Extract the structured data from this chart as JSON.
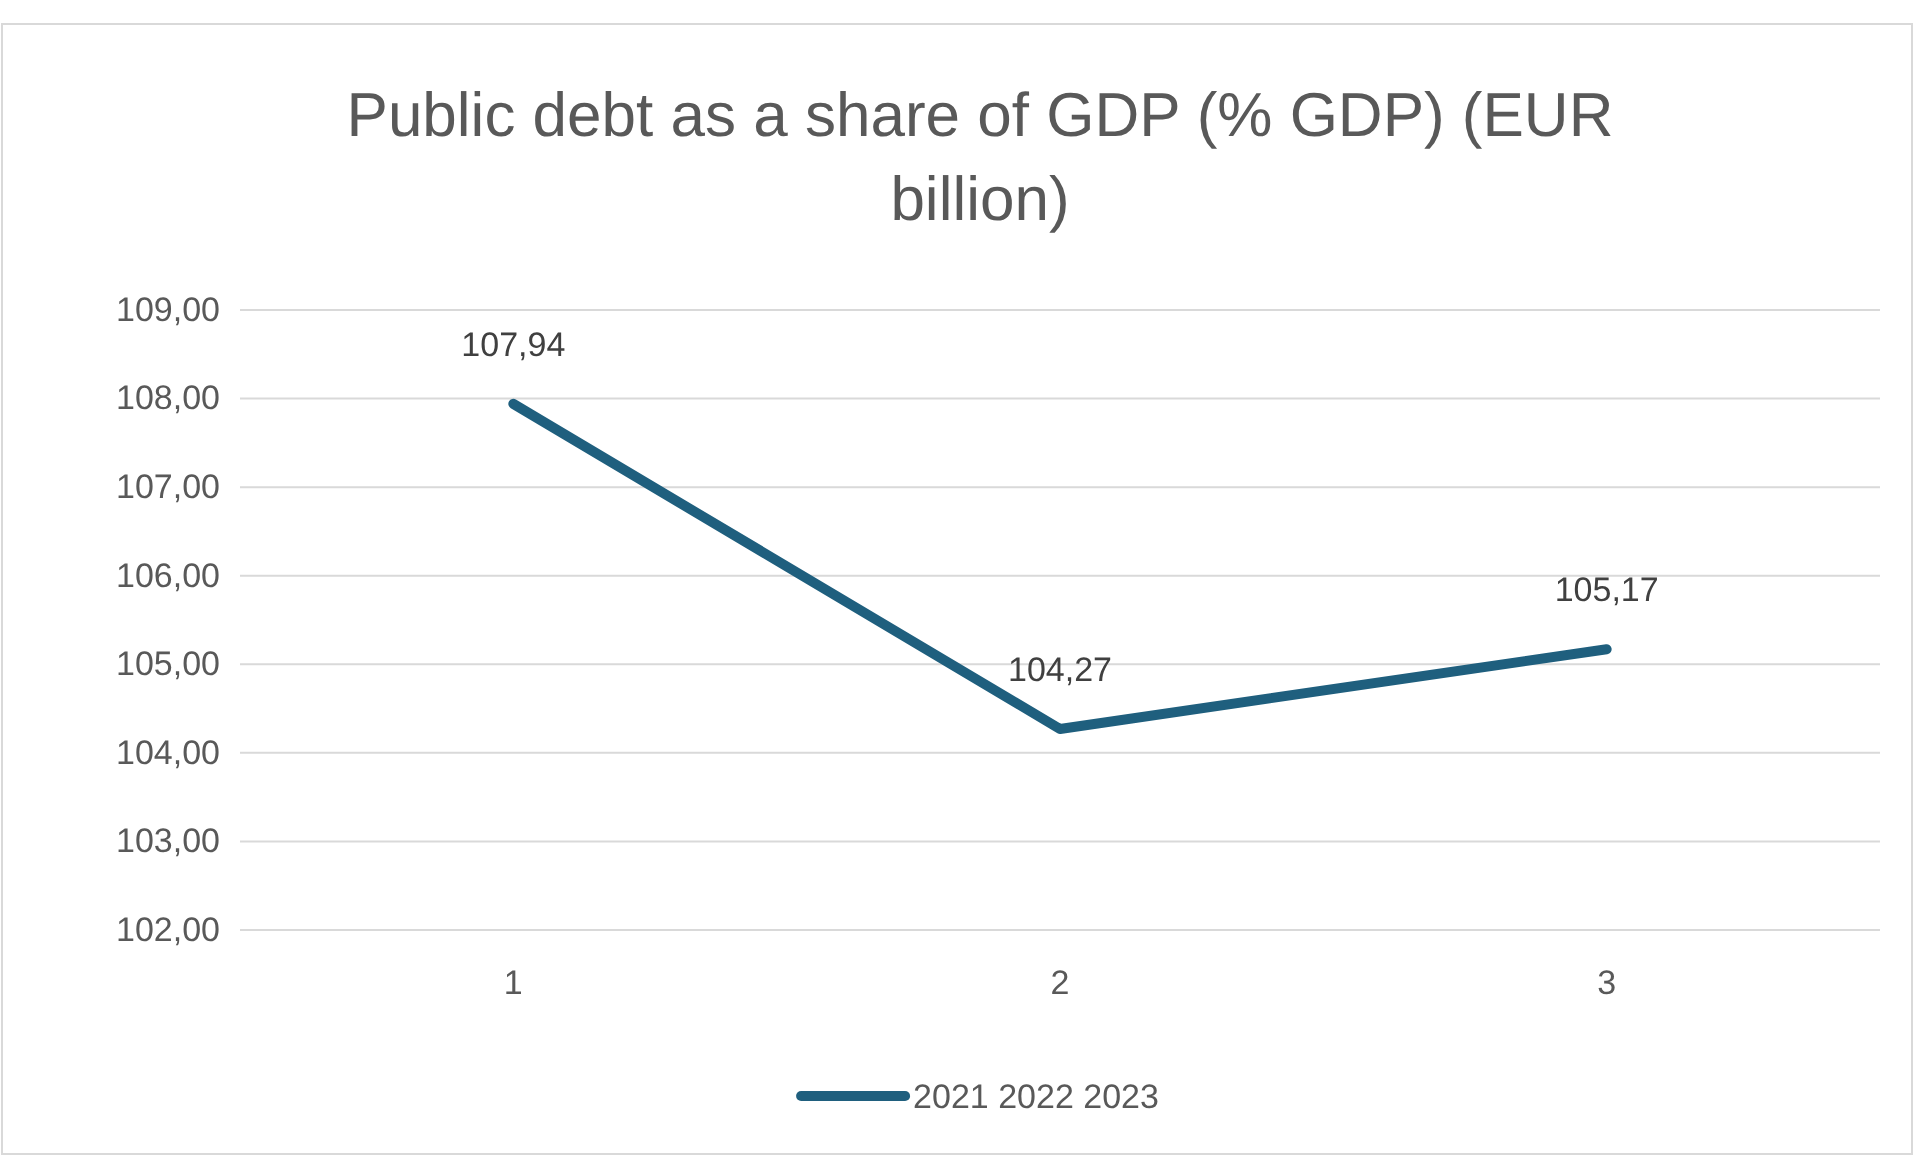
{
  "chart_data": {
    "type": "line",
    "title": "Public debt as a share of GDP (% GDP) (EUR billion)",
    "categories": [
      "1",
      "2",
      "3"
    ],
    "series": [
      {
        "name": "2021 2022 2023",
        "color": "#1f5f7e",
        "values": [
          107.94,
          104.27,
          105.17
        ],
        "value_labels": [
          "107,94",
          "104,27",
          "105,17"
        ]
      }
    ],
    "ylim": [
      102,
      109
    ],
    "yticks": [
      {
        "value": 102,
        "label": "102,00"
      },
      {
        "value": 103,
        "label": "103,00"
      },
      {
        "value": 104,
        "label": "104,00"
      },
      {
        "value": 105,
        "label": "105,00"
      },
      {
        "value": 106,
        "label": "106,00"
      },
      {
        "value": 107,
        "label": "107,00"
      },
      {
        "value": 108,
        "label": "108,00"
      },
      {
        "value": 109,
        "label": "109,00"
      }
    ],
    "grid": "y",
    "legend": "bottom",
    "marker": "none",
    "line_style": "solid"
  }
}
